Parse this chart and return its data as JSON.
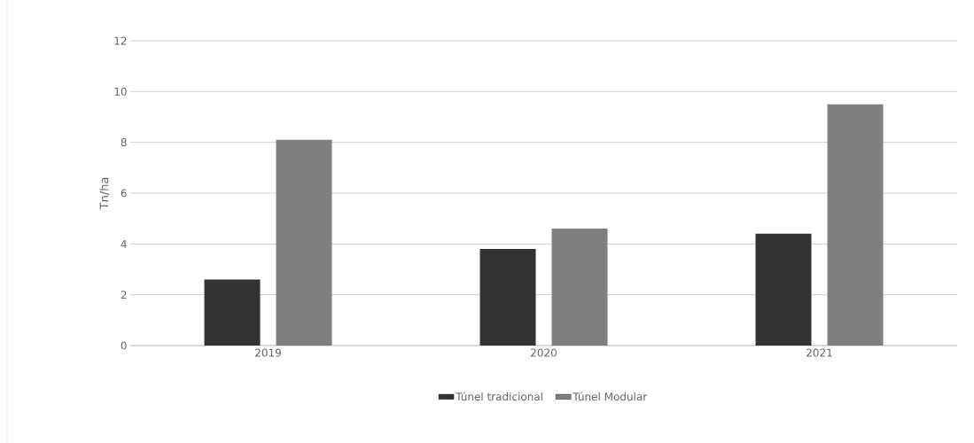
{
  "chart_data": {
    "type": "bar",
    "ylabel": "Tn/ha",
    "categories": [
      "2019",
      "2020",
      "2021"
    ],
    "series": [
      {
        "name": "Túnel tradicional",
        "color": "#333333",
        "values": [
          2.6,
          3.8,
          4.4
        ]
      },
      {
        "name": "Túnel Modular",
        "color": "#7f7f7f",
        "values": [
          8.1,
          4.6,
          9.5
        ]
      }
    ],
    "ylim": [
      0,
      12
    ],
    "yticks": [
      0,
      2,
      4,
      6,
      8,
      10,
      12
    ],
    "grid": "y",
    "legend": "bottom"
  }
}
